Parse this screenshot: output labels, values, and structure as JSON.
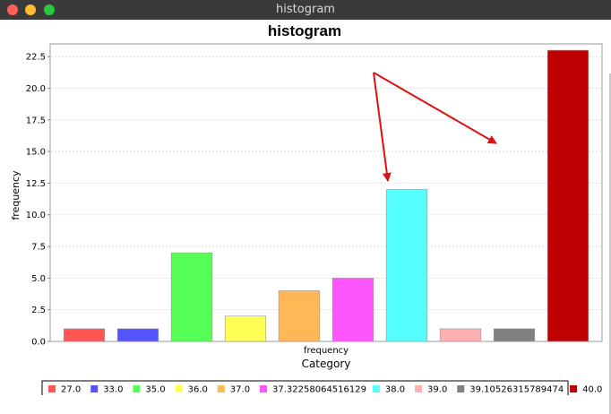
{
  "window": {
    "title": "histogram"
  },
  "chart_data": {
    "type": "bar",
    "title": "histogram",
    "xlabel": "Category",
    "ylabel": "frequency",
    "category_label": "frequency",
    "ylim": [
      0,
      23.5
    ],
    "yticks": [
      "0.0",
      "2.5",
      "5.0",
      "7.5",
      "10.0",
      "12.5",
      "15.0",
      "17.5",
      "20.0",
      "22.5"
    ],
    "grid": true,
    "legend_position": "bottom",
    "series": [
      {
        "name": "27.0",
        "value": 1,
        "color": "#ff5555"
      },
      {
        "name": "33.0",
        "value": 1,
        "color": "#5555ff"
      },
      {
        "name": "35.0",
        "value": 7,
        "color": "#55ff55"
      },
      {
        "name": "36.0",
        "value": 2,
        "color": "#ffff55"
      },
      {
        "name": "37.0",
        "value": 4,
        "color": "#ffb855"
      },
      {
        "name": "37.32258064516129",
        "value": 5,
        "color": "#ff55ff"
      },
      {
        "name": "38.0",
        "value": 12,
        "color": "#55ffff"
      },
      {
        "name": "39.0",
        "value": 1,
        "color": "#ffafaf"
      },
      {
        "name": "39.10526315789474",
        "value": 1,
        "color": "#808080"
      },
      {
        "name": "40.0",
        "value": 23,
        "color": "#c00000"
      }
    ],
    "annotation_color": "#e01010"
  }
}
